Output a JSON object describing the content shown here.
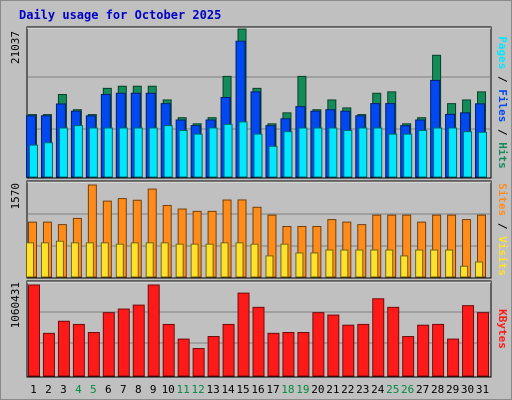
{
  "title": "Daily usage for October 2025",
  "colors": {
    "pages": "#00e8ff",
    "files": "#0048f0",
    "hits": "#148c5a",
    "sites": "#ffe02a",
    "visits": "#ff8c1a",
    "kbytes": "#ff1a1a",
    "weekend_label": "#008a40",
    "weekday_label": "#000000",
    "slash": "#000000"
  },
  "chart_data": [
    {
      "type": "bar",
      "panel": "hits-files-pages",
      "categories": [
        "1",
        "2",
        "3",
        "4",
        "5",
        "6",
        "7",
        "8",
        "9",
        "10",
        "11",
        "12",
        "13",
        "14",
        "15",
        "16",
        "17",
        "18",
        "19",
        "20",
        "21",
        "22",
        "23",
        "24",
        "25",
        "26",
        "27",
        "28",
        "29",
        "30",
        "31"
      ],
      "weekend_days": [
        "4",
        "5",
        "11",
        "12",
        "18",
        "19",
        "25",
        "26"
      ],
      "ytick": "21037",
      "ylim": [
        0,
        21037
      ],
      "legend": [
        "Pages",
        "Files",
        "Hits"
      ],
      "series": [
        {
          "name": "Hits",
          "values": [
            8870,
            8870,
            11730,
            9560,
            8870,
            12600,
            12900,
            12900,
            12900,
            10950,
            8430,
            7560,
            8430,
            14300,
            21037,
            12600,
            7560,
            9120,
            14300,
            9560,
            10950,
            9820,
            8870,
            11900,
            12100,
            7560,
            8430,
            17300,
            10430,
            10950,
            12100
          ]
        },
        {
          "name": "Files",
          "values": [
            8700,
            8700,
            10380,
            9350,
            8700,
            11730,
            11900,
            11900,
            11900,
            10430,
            8100,
            7300,
            8100,
            11300,
            19300,
            12100,
            7300,
            8270,
            10000,
            9350,
            9560,
            9350,
            8700,
            10430,
            10430,
            7300,
            8100,
            13730,
            8900,
            9120,
            10400
          ]
        },
        {
          "name": "Pages",
          "values": [
            4530,
            4870,
            6960,
            7300,
            6960,
            6960,
            6960,
            6960,
            6960,
            7300,
            6610,
            6090,
            6960,
            7480,
            7830,
            6090,
            4350,
            6440,
            6960,
            6960,
            6960,
            6610,
            6960,
            6960,
            6090,
            6090,
            6610,
            6960,
            6960,
            6440,
            6350
          ]
        }
      ]
    },
    {
      "type": "bar",
      "panel": "visits-sites",
      "categories": [
        "1",
        "2",
        "3",
        "4",
        "5",
        "6",
        "7",
        "8",
        "9",
        "10",
        "11",
        "12",
        "13",
        "14",
        "15",
        "16",
        "17",
        "18",
        "19",
        "20",
        "21",
        "22",
        "23",
        "24",
        "25",
        "26",
        "27",
        "28",
        "29",
        "30",
        "31"
      ],
      "ytick": "1570",
      "ylim": [
        0,
        1570
      ],
      "legend": [
        "Sites",
        "Visits"
      ],
      "series": [
        {
          "name": "Visits",
          "values": [
            936,
            936,
            894,
            1000,
            1570,
            1295,
            1338,
            1310,
            1500,
            1220,
            1160,
            1120,
            1120,
            1314,
            1315,
            1190,
            1055,
            862,
            862,
            862,
            980,
            936,
            894,
            1055,
            1055,
            1055,
            936,
            1055,
            1055,
            980,
            1055
          ]
        },
        {
          "name": "Sites",
          "values": [
            583,
            583,
            610,
            583,
            583,
            583,
            560,
            583,
            583,
            583,
            560,
            560,
            560,
            583,
            583,
            560,
            360,
            560,
            410,
            410,
            460,
            460,
            460,
            460,
            460,
            360,
            460,
            460,
            460,
            183,
            256
          ]
        }
      ]
    },
    {
      "type": "bar",
      "panel": "kbytes",
      "categories": [
        "1",
        "2",
        "3",
        "4",
        "5",
        "6",
        "7",
        "8",
        "9",
        "10",
        "11",
        "12",
        "13",
        "14",
        "15",
        "16",
        "17",
        "18",
        "19",
        "20",
        "21",
        "22",
        "23",
        "24",
        "25",
        "26",
        "27",
        "28",
        "29",
        "30",
        "31"
      ],
      "ytick": "1060431",
      "ylim": [
        0,
        1060431
      ],
      "legend": [
        "KBytes"
      ],
      "series": [
        {
          "name": "KBytes",
          "values": [
            1060431,
            497000,
            638000,
            601000,
            507000,
            738000,
            780000,
            826000,
            1060431,
            601000,
            430000,
            320000,
            460000,
            601000,
            966000,
            800000,
            497000,
            507000,
            507000,
            738000,
            710000,
            592000,
            601000,
            900000,
            800000,
            460000,
            592000,
            601000,
            430000,
            820000,
            738000
          ]
        }
      ]
    }
  ]
}
